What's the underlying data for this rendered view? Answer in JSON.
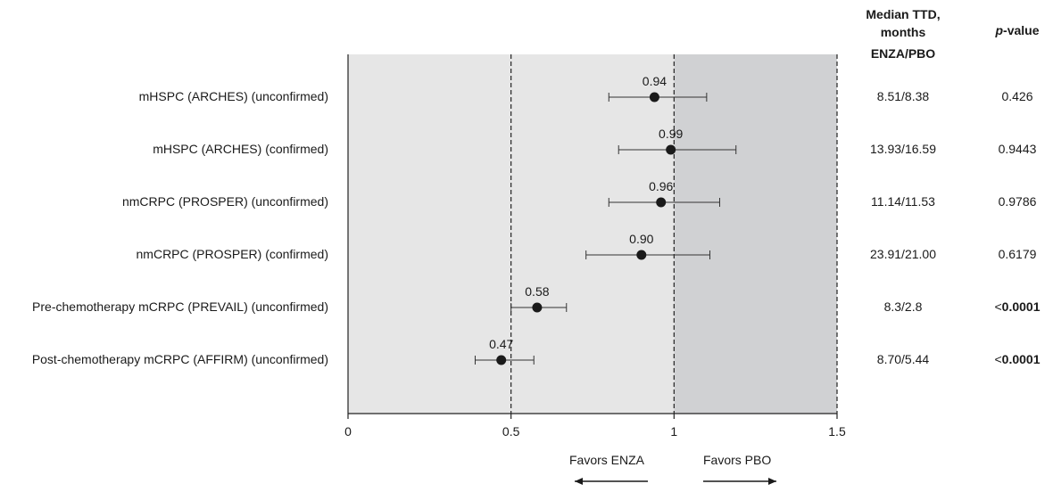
{
  "chart_data": {
    "type": "forest",
    "xlim": [
      0,
      1.5
    ],
    "xticks": [
      "0",
      "0.5",
      "1",
      "1.5"
    ],
    "reference_lines": [
      0.5,
      1,
      1.5
    ],
    "rows": [
      {
        "label": "mHSPC (ARCHES) (unconfirmed)",
        "estimate": 0.94,
        "ci": [
          0.8,
          1.1
        ],
        "ttd": "8.51/8.38",
        "p_prefix": "",
        "p": "0.426",
        "p_bold": false
      },
      {
        "label": "mHSPC (ARCHES) (confirmed)",
        "estimate": 0.99,
        "ci": [
          0.83,
          1.19
        ],
        "ttd": "13.93/16.59",
        "p_prefix": "",
        "p": "0.9443",
        "p_bold": false
      },
      {
        "label": "nmCRPC (PROSPER) (unconfirmed)",
        "estimate": 0.96,
        "ci": [
          0.8,
          1.14
        ],
        "ttd": "11.14/11.53",
        "p_prefix": "",
        "p": "0.9786",
        "p_bold": false
      },
      {
        "label": "nmCRPC (PROSPER) (confirmed)",
        "estimate": 0.9,
        "ci": [
          0.73,
          1.11
        ],
        "ttd": "23.91/21.00",
        "p_prefix": "",
        "p": "0.6179",
        "p_bold": false
      },
      {
        "label": "Pre-chemotherapy mCRPC (PREVAIL) (unconfirmed)",
        "estimate": 0.58,
        "ci": [
          0.5,
          0.67
        ],
        "ttd": "8.3/2.8",
        "p_prefix": "<",
        "p": "0.0001",
        "p_bold": true
      },
      {
        "label": "Post-chemotherapy mCRPC (AFFIRM) (unconfirmed)",
        "estimate": 0.47,
        "ci": [
          0.39,
          0.57
        ],
        "ttd": "8.70/5.44",
        "p_prefix": "<",
        "p": "0.0001",
        "p_bold": true
      }
    ],
    "favors_left": "Favors ENZA",
    "favors_right": "Favors PBO",
    "colors": {
      "region_left": "#e6e6e6",
      "region_right": "#d0d1d3",
      "marker": "#1a1a1a"
    }
  },
  "headers": {
    "ttd_line1": "Median TTD,",
    "ttd_line2": "months",
    "ttd_line3": "ENZA/PBO",
    "p_italic": "p",
    "p_rest": "-value"
  }
}
